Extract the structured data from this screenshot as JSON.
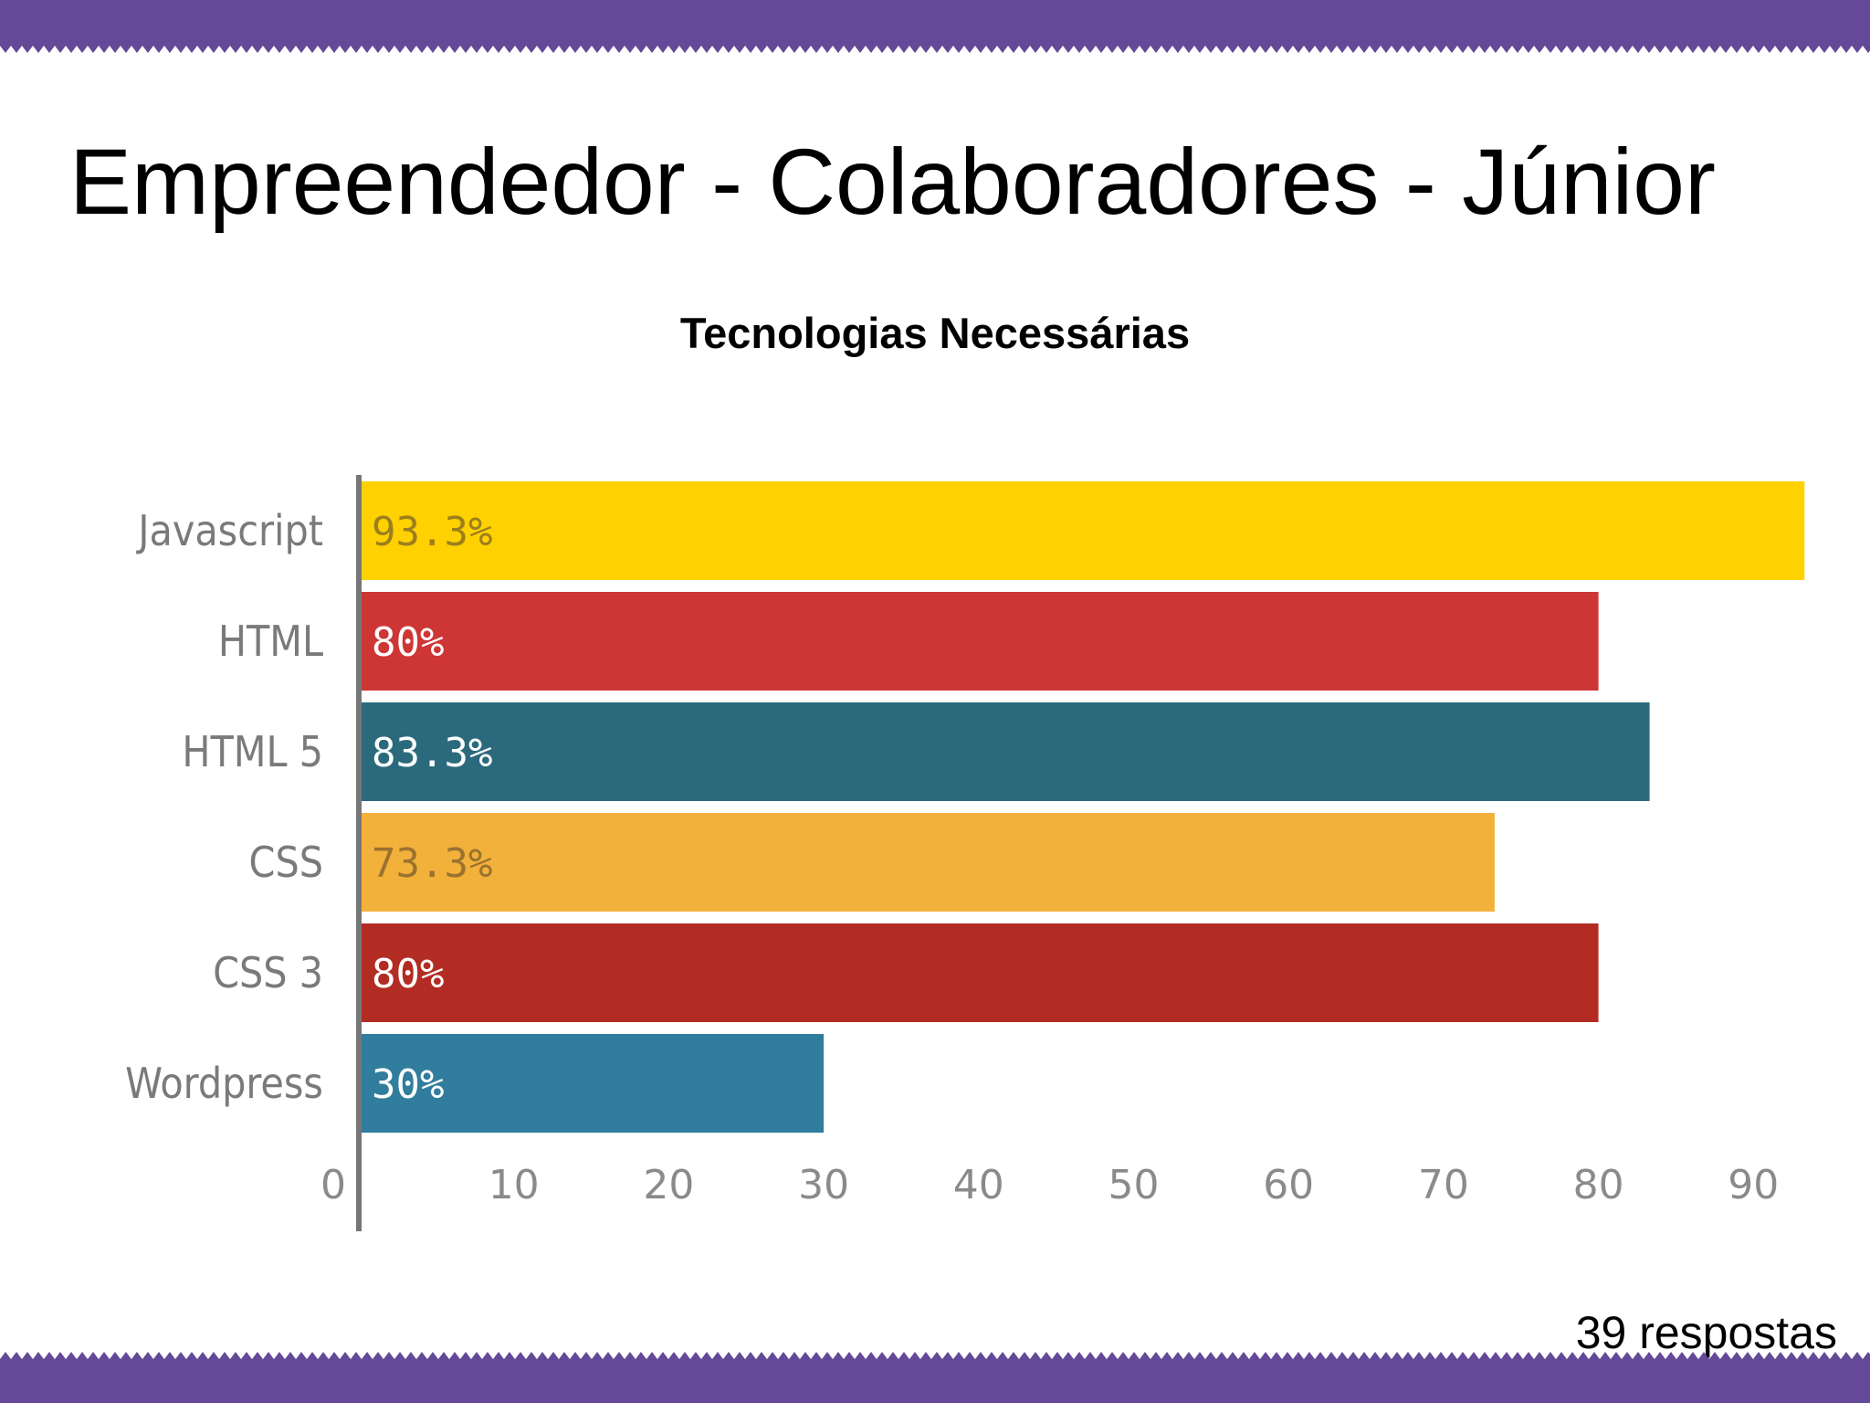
{
  "slide": {
    "title": "Empreendedor - Colaboradores - Júnior",
    "footnote": "39 respostas",
    "band_color": "#634997"
  },
  "chart_data": {
    "type": "bar",
    "orientation": "horizontal",
    "title": "Tecnologias Necessárias",
    "categories": [
      "Javascript",
      "HTML",
      "HTML 5",
      "CSS",
      "CSS 3",
      "Wordpress"
    ],
    "values": [
      93.3,
      80,
      83.3,
      73.3,
      80,
      30
    ],
    "data_labels": [
      "93.3%",
      "80%",
      "83.3%",
      "73.3%",
      "80%",
      "30%"
    ],
    "colors": [
      "#FFD100",
      "#CE3636",
      "#2B6A7C",
      "#F2B13A",
      "#B22C24",
      "#317D9D"
    ],
    "label_colors": [
      "#9C7E1E",
      "#FFFFFF",
      "#FFFFFF",
      "#9A7230",
      "#FFFFFF",
      "#FFFFFF"
    ],
    "x_ticks": [
      "0",
      "10",
      "20",
      "30",
      "40",
      "50",
      "60",
      "70",
      "80",
      "90"
    ],
    "xlim": [
      0,
      95
    ],
    "grid": false,
    "legend": "none"
  }
}
